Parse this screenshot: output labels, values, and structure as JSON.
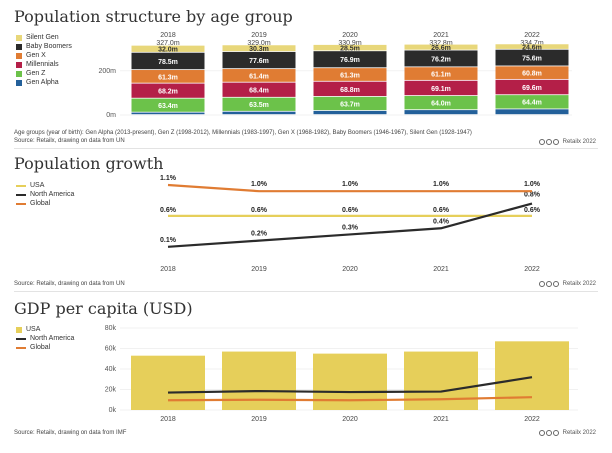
{
  "colors": {
    "silent": "#e8d77a",
    "boomers": "#2b2b2b",
    "genx": "#e07c33",
    "millennials": "#b41f48",
    "genz": "#6cc24a",
    "alpha": "#23609a",
    "usa": "#e6cf5a",
    "north_america": "#2b2b2b",
    "global": "#e07c33"
  },
  "credit": "Retailx 2022",
  "chart_data": [
    {
      "type": "bar",
      "title": "Population structure by age group",
      "categories": [
        "2018",
        "2019",
        "2020",
        "2021",
        "2022"
      ],
      "totals": [
        "327.0m",
        "329.0m",
        "330.9m",
        "332.8m",
        "334.7m"
      ],
      "y_ticks": [
        "200m",
        "0m"
      ],
      "ylim": [
        0,
        340
      ],
      "series": [
        {
          "name": "Gen Alpha",
          "values": [
            11.0,
            15.0,
            18.6,
            22.2,
            25.7
          ],
          "labels": [
            "",
            "",
            "",
            "",
            ""
          ]
        },
        {
          "name": "Gen Z",
          "values": [
            63.4,
            63.5,
            63.7,
            64.0,
            64.4
          ],
          "labels": [
            "63.4m",
            "63.5m",
            "63.7m",
            "64.0m",
            "64.4m"
          ]
        },
        {
          "name": "Millennials",
          "values": [
            68.2,
            68.4,
            68.8,
            69.1,
            69.6
          ],
          "labels": [
            "68.2m",
            "68.4m",
            "68.8m",
            "69.1m",
            "69.6m"
          ]
        },
        {
          "name": "Gen X",
          "values": [
            61.3,
            61.4,
            61.3,
            61.1,
            60.8
          ],
          "labels": [
            "61.3m",
            "61.4m",
            "61.3m",
            "61.1m",
            "60.8m"
          ]
        },
        {
          "name": "Baby Boomers",
          "values": [
            78.5,
            77.6,
            76.9,
            76.2,
            75.6
          ],
          "labels": [
            "78.5m",
            "77.6m",
            "76.9m",
            "76.2m",
            "75.6m"
          ]
        },
        {
          "name": "Silent Gen",
          "values": [
            32.0,
            30.3,
            28.5,
            26.6,
            24.6
          ],
          "labels": [
            "32.0m",
            "30.3m",
            "28.5m",
            "26.6m",
            "24.6m"
          ]
        }
      ],
      "legend": [
        "Silent Gen",
        "Baby Boomers",
        "Gen X",
        "Millennials",
        "Gen Z",
        "Gen Alpha"
      ],
      "note": "Age groups (year of birth): Gen Alpha (2013-present), Gen Z (1998-2012), Millennials (1983-1997), Gen X (1968-1982), Baby Boomers (1946-1967), Silent Gen (1928-1947)",
      "source": "Source: Retailx, drawing on data from UN"
    },
    {
      "type": "line",
      "title": "Population growth",
      "x": [
        "2018",
        "2019",
        "2020",
        "2021",
        "2022"
      ],
      "ylim": [
        0,
        1.2
      ],
      "series": [
        {
          "name": "USA",
          "values": [
            0.6,
            0.6,
            0.6,
            0.6,
            0.6
          ],
          "labels": [
            "0.6%",
            "0.6%",
            "0.6%",
            "0.6%",
            "0.6%"
          ]
        },
        {
          "name": "North America",
          "values": [
            0.1,
            0.2,
            0.3,
            0.4,
            0.8
          ],
          "labels": [
            "0.1%",
            "0.2%",
            "0.3%",
            "0.4%",
            "0.8%"
          ]
        },
        {
          "name": "Global",
          "values": [
            1.1,
            1.0,
            1.0,
            1.0,
            1.0
          ],
          "labels": [
            "1.1%",
            "1.0%",
            "1.0%",
            "1.0%",
            "1.0%"
          ]
        }
      ],
      "source": "Source: Retailx, drawing on data from UN"
    },
    {
      "type": "bar",
      "title": "GDP per capita (USD)",
      "categories": [
        "2018",
        "2019",
        "2020",
        "2021",
        "2022"
      ],
      "y_ticks": [
        "80k",
        "60k",
        "40k",
        "20k",
        "0k"
      ],
      "ylim": [
        0,
        80000
      ],
      "series": [
        {
          "name": "USA",
          "kind": "bar",
          "values": [
            53000,
            57000,
            55000,
            57000,
            67000
          ]
        },
        {
          "name": "North America",
          "kind": "line",
          "values": [
            17000,
            18500,
            17500,
            18000,
            32000
          ]
        },
        {
          "name": "Global",
          "kind": "line",
          "values": [
            9500,
            10000,
            9500,
            10500,
            12500
          ]
        }
      ],
      "source": "Source: Retailx, drawing on data from IMF"
    }
  ]
}
